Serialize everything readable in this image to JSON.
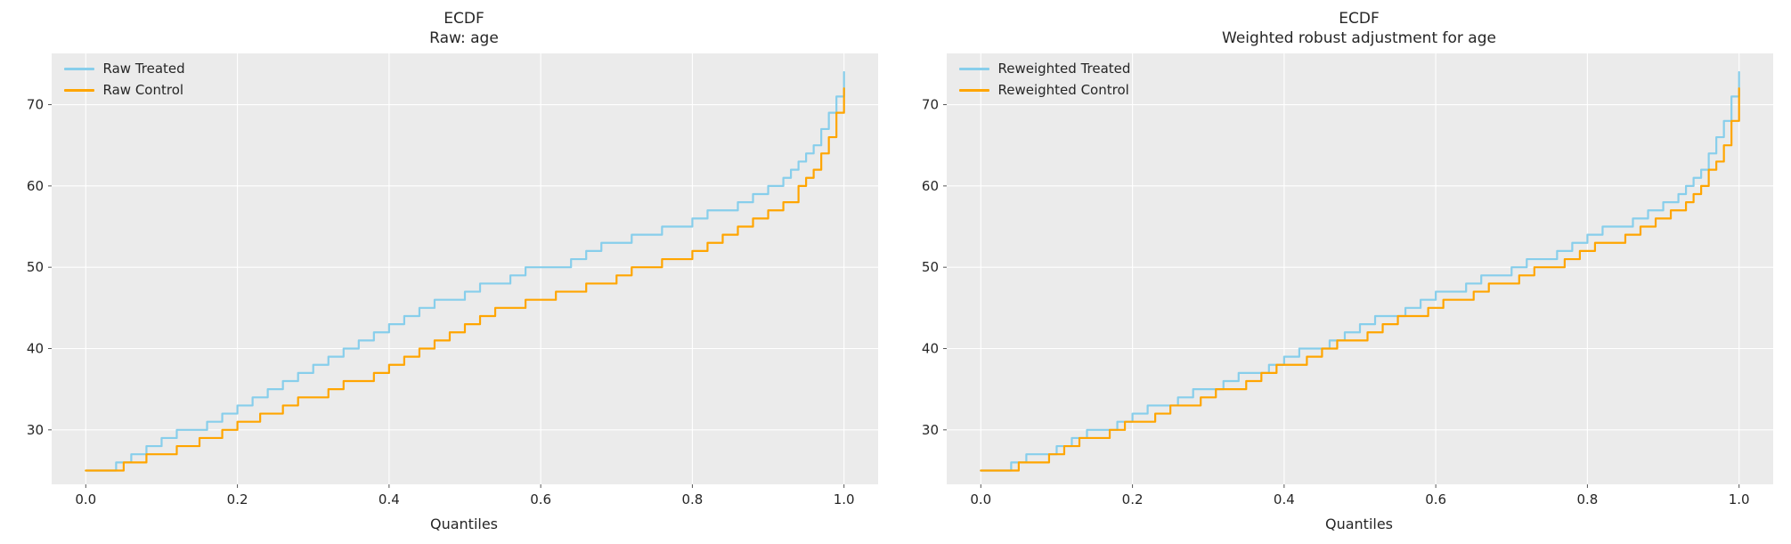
{
  "figure": {
    "background": "#ffffff",
    "axes_background": "#ebebeb",
    "grid_color": "#ffffff",
    "tick_color": "#555555",
    "text_color": "#262626",
    "treated_color": "#87ceeb",
    "control_color": "#ffa500"
  },
  "chart_data": [
    {
      "type": "line",
      "title": "ECDF",
      "subtitle": "Raw: age",
      "xlabel": "Quantiles",
      "ylabel": "",
      "xlim": [
        -0.045,
        1.045
      ],
      "ylim": [
        23.3,
        76.3
      ],
      "xticks": [
        0.0,
        0.2,
        0.4,
        0.6,
        0.8,
        1.0
      ],
      "xtick_labels": [
        "0.0",
        "0.2",
        "0.4",
        "0.6",
        "0.8",
        "1.0"
      ],
      "yticks": [
        30,
        40,
        50,
        60,
        70
      ],
      "ytick_labels": [
        "30",
        "40",
        "50",
        "60",
        "70"
      ],
      "grid": true,
      "legend_position": "upper left",
      "step": true,
      "series": [
        {
          "name": "Raw Treated",
          "color": "#87ceeb",
          "x": [
            0.0,
            0.02,
            0.04,
            0.06,
            0.08,
            0.1,
            0.12,
            0.14,
            0.16,
            0.18,
            0.2,
            0.22,
            0.24,
            0.26,
            0.28,
            0.3,
            0.32,
            0.34,
            0.36,
            0.38,
            0.4,
            0.42,
            0.44,
            0.46,
            0.48,
            0.5,
            0.52,
            0.54,
            0.56,
            0.58,
            0.6,
            0.62,
            0.64,
            0.66,
            0.68,
            0.7,
            0.72,
            0.74,
            0.76,
            0.78,
            0.8,
            0.82,
            0.84,
            0.86,
            0.88,
            0.9,
            0.92,
            0.93,
            0.94,
            0.95,
            0.96,
            0.97,
            0.98,
            0.99,
            1.0
          ],
          "y": [
            25,
            25,
            26,
            27,
            28,
            29,
            30,
            30,
            31,
            32,
            33,
            34,
            35,
            36,
            37,
            38,
            39,
            40,
            41,
            42,
            43,
            44,
            45,
            46,
            46,
            47,
            48,
            48,
            49,
            50,
            50,
            50,
            51,
            52,
            53,
            53,
            54,
            54,
            55,
            55,
            56,
            57,
            57,
            58,
            59,
            60,
            61,
            62,
            63,
            64,
            65,
            67,
            69,
            71,
            74
          ]
        },
        {
          "name": "Raw Control",
          "color": "#ffa500",
          "x": [
            0.0,
            0.03,
            0.05,
            0.08,
            0.1,
            0.12,
            0.15,
            0.18,
            0.2,
            0.23,
            0.26,
            0.28,
            0.3,
            0.32,
            0.34,
            0.36,
            0.38,
            0.4,
            0.42,
            0.44,
            0.46,
            0.48,
            0.5,
            0.52,
            0.54,
            0.56,
            0.58,
            0.6,
            0.62,
            0.64,
            0.66,
            0.68,
            0.7,
            0.72,
            0.74,
            0.76,
            0.78,
            0.8,
            0.82,
            0.84,
            0.86,
            0.88,
            0.9,
            0.92,
            0.94,
            0.95,
            0.96,
            0.97,
            0.98,
            0.99,
            1.0
          ],
          "y": [
            25,
            25,
            26,
            27,
            27,
            28,
            29,
            30,
            31,
            32,
            33,
            34,
            34,
            35,
            36,
            36,
            37,
            38,
            39,
            40,
            41,
            42,
            43,
            44,
            45,
            45,
            46,
            46,
            47,
            47,
            48,
            48,
            49,
            50,
            50,
            51,
            51,
            52,
            53,
            54,
            55,
            56,
            57,
            58,
            60,
            61,
            62,
            64,
            66,
            69,
            72
          ]
        }
      ]
    },
    {
      "type": "line",
      "title": "ECDF",
      "subtitle": "Weighted robust adjustment for age",
      "xlabel": "Quantiles",
      "ylabel": "",
      "xlim": [
        -0.045,
        1.045
      ],
      "ylim": [
        23.3,
        76.3
      ],
      "xticks": [
        0.0,
        0.2,
        0.4,
        0.6,
        0.8,
        1.0
      ],
      "xtick_labels": [
        "0.0",
        "0.2",
        "0.4",
        "0.6",
        "0.8",
        "1.0"
      ],
      "yticks": [
        30,
        40,
        50,
        60,
        70
      ],
      "ytick_labels": [
        "30",
        "40",
        "50",
        "60",
        "70"
      ],
      "grid": true,
      "legend_position": "upper left",
      "step": true,
      "series": [
        {
          "name": "Reweighted Treated",
          "color": "#87ceeb",
          "x": [
            0.0,
            0.02,
            0.04,
            0.06,
            0.08,
            0.1,
            0.12,
            0.14,
            0.16,
            0.18,
            0.2,
            0.22,
            0.24,
            0.26,
            0.28,
            0.3,
            0.32,
            0.34,
            0.36,
            0.38,
            0.4,
            0.42,
            0.44,
            0.46,
            0.48,
            0.5,
            0.52,
            0.54,
            0.56,
            0.58,
            0.6,
            0.62,
            0.64,
            0.66,
            0.68,
            0.7,
            0.72,
            0.74,
            0.76,
            0.78,
            0.8,
            0.82,
            0.84,
            0.86,
            0.88,
            0.9,
            0.92,
            0.93,
            0.94,
            0.95,
            0.96,
            0.97,
            0.98,
            0.99,
            1.0
          ],
          "y": [
            25,
            25,
            26,
            27,
            27,
            28,
            29,
            30,
            30,
            31,
            32,
            33,
            33,
            34,
            35,
            35,
            36,
            37,
            37,
            38,
            39,
            40,
            40,
            41,
            42,
            43,
            44,
            44,
            45,
            46,
            47,
            47,
            48,
            49,
            49,
            50,
            51,
            51,
            52,
            53,
            54,
            55,
            55,
            56,
            57,
            58,
            59,
            60,
            61,
            62,
            64,
            66,
            68,
            71,
            74
          ]
        },
        {
          "name": "Reweighted Control",
          "color": "#ffa500",
          "x": [
            0.0,
            0.03,
            0.05,
            0.07,
            0.09,
            0.11,
            0.13,
            0.15,
            0.17,
            0.19,
            0.21,
            0.23,
            0.25,
            0.27,
            0.29,
            0.31,
            0.33,
            0.35,
            0.37,
            0.39,
            0.41,
            0.43,
            0.45,
            0.47,
            0.49,
            0.51,
            0.53,
            0.55,
            0.57,
            0.59,
            0.61,
            0.63,
            0.65,
            0.67,
            0.69,
            0.71,
            0.73,
            0.75,
            0.77,
            0.79,
            0.81,
            0.83,
            0.85,
            0.87,
            0.89,
            0.91,
            0.93,
            0.94,
            0.95,
            0.96,
            0.97,
            0.98,
            0.99,
            1.0
          ],
          "y": [
            25,
            25,
            26,
            26,
            27,
            28,
            29,
            29,
            30,
            31,
            31,
            32,
            33,
            33,
            34,
            35,
            35,
            36,
            37,
            38,
            38,
            39,
            40,
            41,
            41,
            42,
            43,
            44,
            44,
            45,
            46,
            46,
            47,
            48,
            48,
            49,
            50,
            50,
            51,
            52,
            53,
            53,
            54,
            55,
            56,
            57,
            58,
            59,
            60,
            62,
            63,
            65,
            68,
            72
          ]
        }
      ]
    }
  ]
}
